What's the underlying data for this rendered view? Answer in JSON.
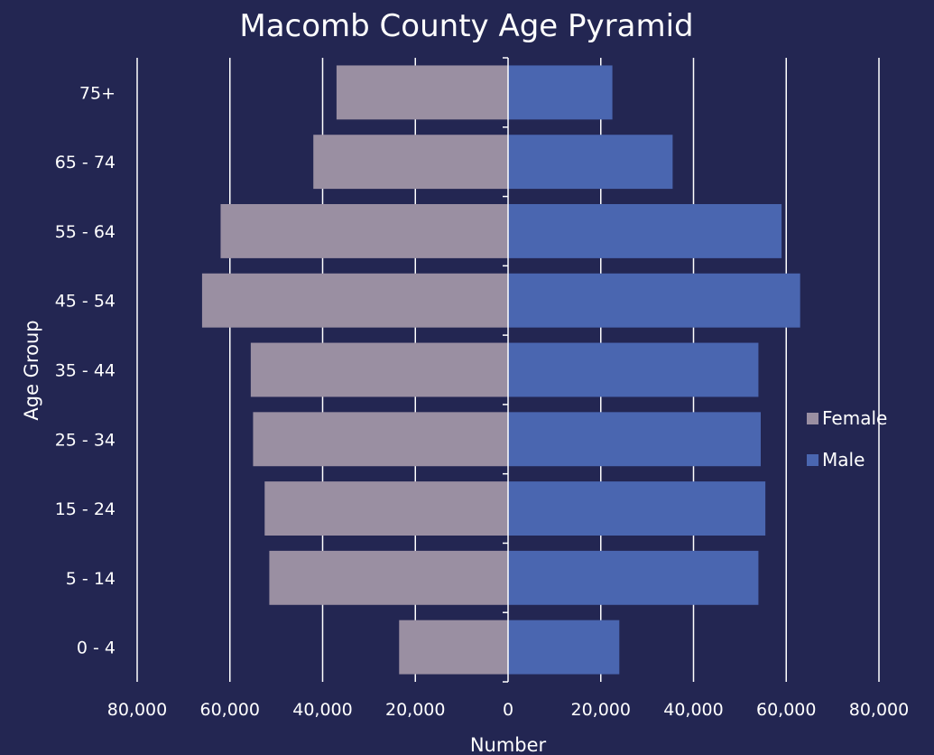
{
  "chart_data": {
    "type": "bar",
    "orientation": "horizontal",
    "title": "Macomb County Age Pyramid",
    "xlabel": "Number",
    "ylabel": "Age Group",
    "xlim": [
      -80000,
      80000
    ],
    "x_ticks": [
      -80000,
      -60000,
      -40000,
      -20000,
      0,
      20000,
      40000,
      60000,
      80000
    ],
    "x_tick_labels": [
      "80,000",
      "60,000",
      "40,000",
      "20,000",
      "0",
      "20,000",
      "40,000",
      "60,000",
      "80,000"
    ],
    "categories": [
      "0 - 4",
      "5 - 14",
      "15 - 24",
      "25 - 34",
      "35 - 44",
      "45 - 54",
      "55 - 64",
      "65 - 74",
      "75+"
    ],
    "series": [
      {
        "name": "Female",
        "color": "#9a8fa2",
        "values": [
          -23500,
          -51500,
          -52500,
          -55000,
          -55500,
          -66000,
          -62000,
          -42000,
          -37000
        ]
      },
      {
        "name": "Male",
        "color": "#4a66b0",
        "values": [
          24000,
          54000,
          55500,
          54500,
          54000,
          63000,
          59000,
          35500,
          22500
        ]
      }
    ],
    "grid": true,
    "legend_position": "right"
  }
}
